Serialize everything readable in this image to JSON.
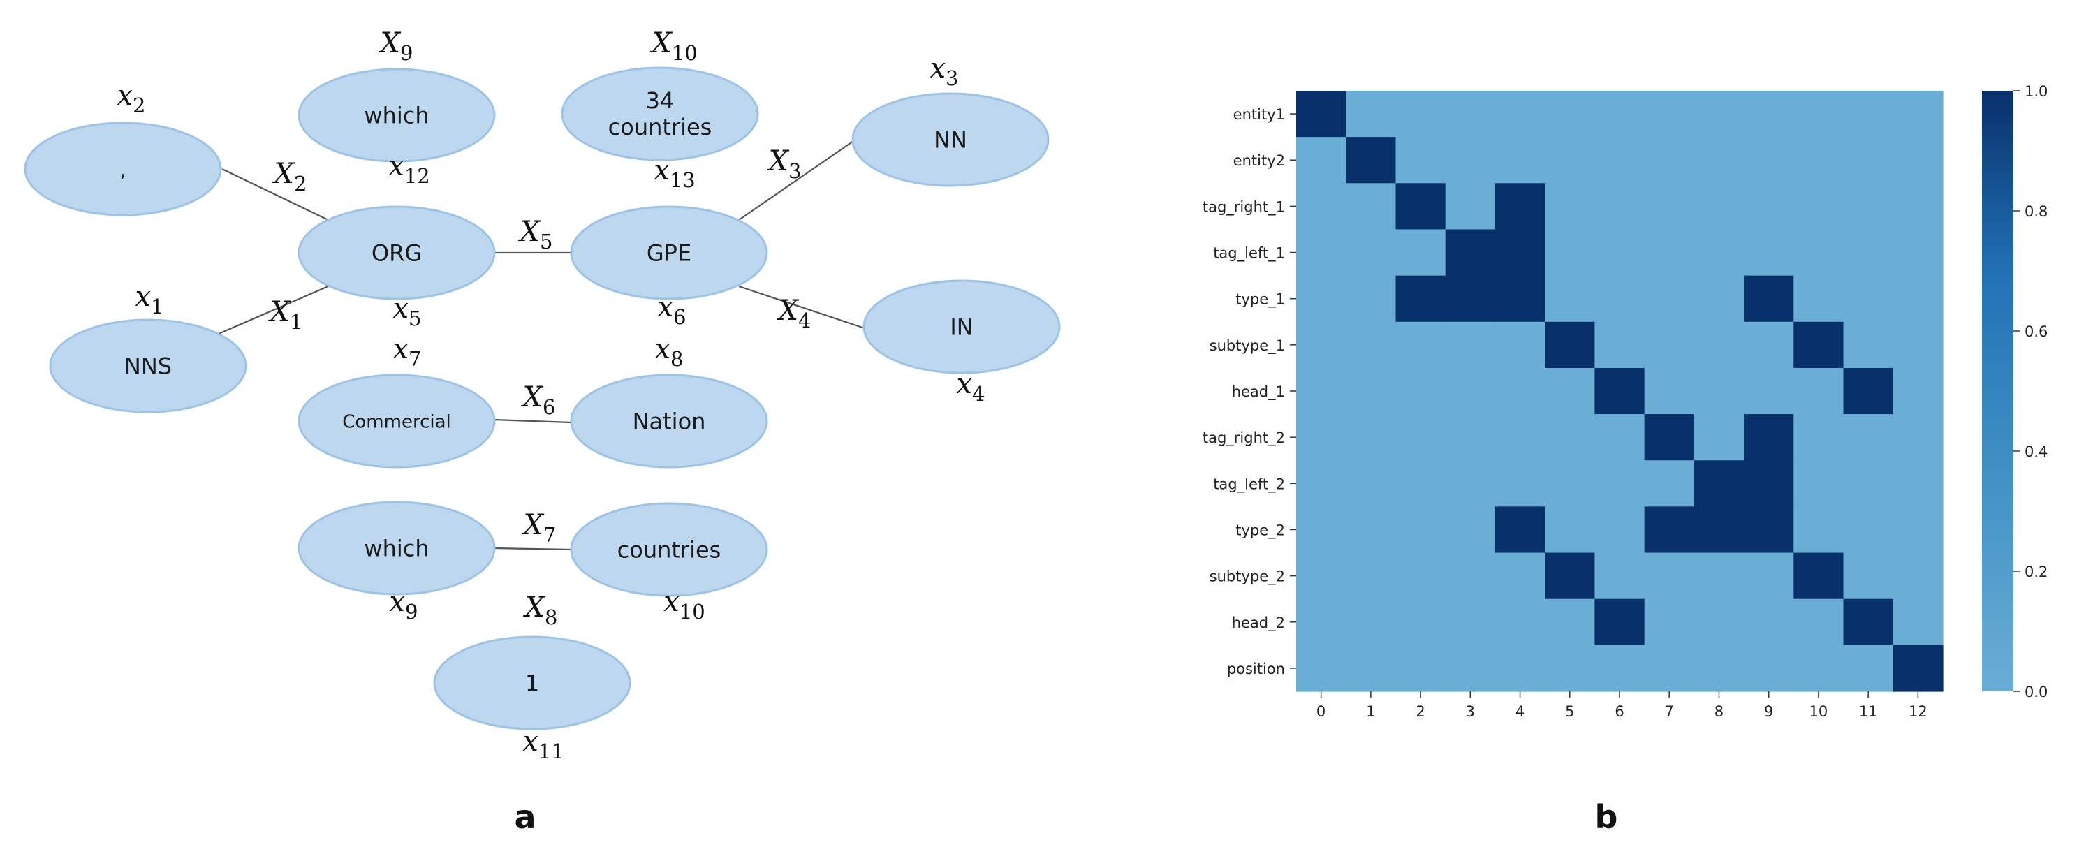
{
  "panel_a": {
    "panel_letter": "a",
    "nodes": [
      {
        "id": "comma",
        "label": ",",
        "var_letter": "x",
        "var_index": "2"
      },
      {
        "id": "nns",
        "label": "NNS",
        "var_letter": "x",
        "var_index": "1"
      },
      {
        "id": "which_top",
        "label": "which",
        "var_letter": "X",
        "var_index": "9"
      },
      {
        "id": "org",
        "label": "ORG",
        "var_letter": "x",
        "var_index": "5"
      },
      {
        "id": "commercial",
        "label": "Commercial",
        "var_letter": "x",
        "var_index": "7"
      },
      {
        "id": "which_bottom",
        "label": "which",
        "var_letter": "x",
        "var_index": "9"
      },
      {
        "id": "countries34",
        "label_line1": "34",
        "label_line2": "countries",
        "var_letter": "X",
        "var_index": "10"
      },
      {
        "id": "gpe",
        "label": "GPE",
        "var_letter": "x",
        "var_index": "6"
      },
      {
        "id": "nation",
        "label": "Nation",
        "var_letter": "x",
        "var_index": "8"
      },
      {
        "id": "countries",
        "label": "countries",
        "var_letter": "x",
        "var_index": "10"
      },
      {
        "id": "one",
        "label": "1",
        "var_letter": "x",
        "var_index": "11"
      },
      {
        "id": "nn",
        "label": "NN",
        "var_letter": "x",
        "var_index": "3"
      },
      {
        "id": "in",
        "label": "IN",
        "var_letter": "x",
        "var_index": "4"
      }
    ],
    "extra_vars": [
      {
        "id": "x12",
        "var_letter": "x",
        "var_index": "12"
      },
      {
        "id": "x13",
        "var_letter": "x",
        "var_index": "13"
      },
      {
        "id": "X8",
        "var_letter": "X",
        "var_index": "8"
      }
    ],
    "edges": [
      {
        "id": "e-comma-org",
        "from": "comma",
        "to": "org",
        "var_letter": "X",
        "var_index": "2"
      },
      {
        "id": "e-nns-org",
        "from": "nns",
        "to": "org",
        "var_letter": "X",
        "var_index": "1"
      },
      {
        "id": "e-org-gpe",
        "from": "org",
        "to": "gpe",
        "var_letter": "X",
        "var_index": "5"
      },
      {
        "id": "e-gpe-nn",
        "from": "gpe",
        "to": "nn",
        "var_letter": "X",
        "var_index": "3"
      },
      {
        "id": "e-gpe-in",
        "from": "gpe",
        "to": "in",
        "var_letter": "X",
        "var_index": "4"
      },
      {
        "id": "e-commercial-nation",
        "from": "commercial",
        "to": "nation",
        "var_letter": "X",
        "var_index": "6"
      },
      {
        "id": "e-which-countries",
        "from": "which_bottom",
        "to": "countries",
        "var_letter": "X",
        "var_index": "7"
      }
    ],
    "colors": {
      "node_fill": "#bdd7ee",
      "node_stroke": "#9dc3e6",
      "edge": "#555555"
    }
  },
  "panel_b": {
    "panel_letter": "b",
    "chart_data": {
      "type": "heatmap",
      "title": "",
      "rows": [
        "entity1",
        "entity2",
        "tag_right_1",
        "tag_left_1",
        "type_1",
        "subtype_1",
        "head_1",
        "tag_right_2",
        "tag_left_2",
        "type_2",
        "subtype_2",
        "head_2",
        "position"
      ],
      "columns": [
        "0",
        "1",
        "2",
        "3",
        "4",
        "5",
        "6",
        "7",
        "8",
        "9",
        "10",
        "11",
        "12"
      ],
      "values": [
        [
          1,
          0,
          0,
          0,
          0,
          0,
          0,
          0,
          0,
          0,
          0,
          0,
          0
        ],
        [
          0,
          1,
          0,
          0,
          0,
          0,
          0,
          0,
          0,
          0,
          0,
          0,
          0
        ],
        [
          0,
          0,
          1,
          0,
          1,
          0,
          0,
          0,
          0,
          0,
          0,
          0,
          0
        ],
        [
          0,
          0,
          0,
          1,
          1,
          0,
          0,
          0,
          0,
          0,
          0,
          0,
          0
        ],
        [
          0,
          0,
          1,
          1,
          1,
          0,
          0,
          0,
          0,
          1,
          0,
          0,
          0
        ],
        [
          0,
          0,
          0,
          0,
          0,
          1,
          0,
          0,
          0,
          0,
          1,
          0,
          0
        ],
        [
          0,
          0,
          0,
          0,
          0,
          0,
          1,
          0,
          0,
          0,
          0,
          1,
          0
        ],
        [
          0,
          0,
          0,
          0,
          0,
          0,
          0,
          1,
          0,
          1,
          0,
          0,
          0
        ],
        [
          0,
          0,
          0,
          0,
          0,
          0,
          0,
          0,
          1,
          1,
          0,
          0,
          0
        ],
        [
          0,
          0,
          0,
          0,
          1,
          0,
          0,
          1,
          1,
          1,
          0,
          0,
          0
        ],
        [
          0,
          0,
          0,
          0,
          0,
          1,
          0,
          0,
          0,
          0,
          1,
          0,
          0
        ],
        [
          0,
          0,
          0,
          0,
          0,
          0,
          1,
          0,
          0,
          0,
          0,
          1,
          0
        ],
        [
          0,
          0,
          0,
          0,
          0,
          0,
          0,
          0,
          0,
          0,
          0,
          0,
          1
        ]
      ],
      "colorbar": {
        "min": 0.0,
        "max": 1.0,
        "ticks": [
          "0.0",
          "0.2",
          "0.4",
          "0.6",
          "0.8",
          "1.0"
        ]
      },
      "colors": {
        "low": "#6aaed6",
        "high": "#08306b",
        "mid": "#2171b5"
      }
    }
  }
}
